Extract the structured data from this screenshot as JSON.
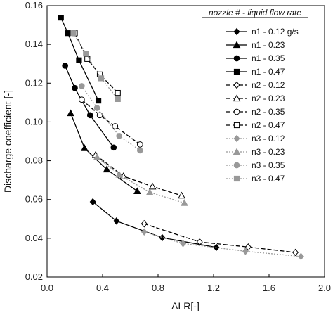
{
  "chart_data": {
    "type": "scatter",
    "title": "",
    "xlabel": "ALR[-]",
    "ylabel": "Discharge coefficient [-]",
    "xlim": [
      0.0,
      2.0
    ],
    "ylim": [
      0.02,
      0.16
    ],
    "x_ticks": [
      "0.0",
      "0.4",
      "0.8",
      "1.2",
      "1.6",
      "2.0"
    ],
    "y_ticks": [
      "0.02",
      "0.04",
      "0.06",
      "0.08",
      "0.10",
      "0.12",
      "0.14",
      "0.16"
    ],
    "legend_title": "nozzle # - liquid flow rate",
    "legend_position": "top-right",
    "grid": false,
    "series": [
      {
        "name": "n1 - 0.12 g/s",
        "marker": "diamond",
        "fill": "#000000",
        "line": "solid",
        "color": "#000000",
        "points": [
          [
            0.33,
            0.0588
          ],
          [
            0.5,
            0.0489
          ],
          [
            0.83,
            0.0403
          ],
          [
            1.22,
            0.0353
          ]
        ]
      },
      {
        "name": "n1 - 0.23",
        "marker": "triangle",
        "fill": "#000000",
        "line": "solid",
        "color": "#000000",
        "points": [
          [
            0.17,
            0.1045
          ],
          [
            0.27,
            0.0865
          ],
          [
            0.43,
            0.0755
          ],
          [
            0.65,
            0.0643
          ]
        ]
      },
      {
        "name": "n1 - 0.35",
        "marker": "circle",
        "fill": "#000000",
        "line": "solid",
        "color": "#000000",
        "points": [
          [
            0.13,
            0.129
          ],
          [
            0.2,
            0.1175
          ],
          [
            0.31,
            0.1035
          ],
          [
            0.48,
            0.0868
          ]
        ]
      },
      {
        "name": "n1 - 0.47",
        "marker": "square",
        "fill": "#000000",
        "line": "solid",
        "color": "#000000",
        "points": [
          [
            0.1,
            0.1538
          ],
          [
            0.15,
            0.1458
          ],
          [
            0.23,
            0.1318
          ],
          [
            0.37,
            0.111
          ]
        ]
      },
      {
        "name": "n2 - 0.12",
        "marker": "diamond",
        "fill": "#ffffff",
        "line": "dashed",
        "color": "#000000",
        "points": [
          [
            0.7,
            0.0475
          ],
          [
            1.1,
            0.0381
          ],
          [
            1.45,
            0.0355
          ],
          [
            1.79,
            0.0327
          ]
        ]
      },
      {
        "name": "n2 - 0.23",
        "marker": "triangle",
        "fill": "#ffffff",
        "line": "dashed",
        "color": "#000000",
        "points": [
          [
            0.35,
            0.083
          ],
          [
            0.55,
            0.072
          ],
          [
            0.76,
            0.0667
          ],
          [
            0.97,
            0.062
          ]
        ]
      },
      {
        "name": "n2 - 0.35",
        "marker": "circle",
        "fill": "#ffffff",
        "line": "dashed",
        "color": "#000000",
        "points": [
          [
            0.25,
            0.1115
          ],
          [
            0.38,
            0.1035
          ],
          [
            0.49,
            0.0978
          ],
          [
            0.67,
            0.0884
          ]
        ]
      },
      {
        "name": "n2 - 0.47",
        "marker": "square",
        "fill": "#ffffff",
        "line": "dashed",
        "color": "#000000",
        "points": [
          [
            0.2,
            0.1458
          ],
          [
            0.29,
            0.1325
          ],
          [
            0.38,
            0.1245
          ],
          [
            0.51,
            0.115
          ]
        ]
      },
      {
        "name": "n3 - 0.12",
        "marker": "diamond",
        "fill": "#999999",
        "line": "dotted",
        "color": "#999999",
        "points": [
          [
            0.7,
            0.0433
          ],
          [
            0.98,
            0.0373
          ],
          [
            1.43,
            0.0333
          ],
          [
            1.83,
            0.0306
          ]
        ]
      },
      {
        "name": "n3 - 0.23",
        "marker": "triangle",
        "fill": "#999999",
        "line": "dotted",
        "color": "#999999",
        "points": [
          [
            0.36,
            0.0818
          ],
          [
            0.52,
            0.0728
          ],
          [
            0.74,
            0.0637
          ],
          [
            0.99,
            0.0582
          ]
        ]
      },
      {
        "name": "n3 - 0.35",
        "marker": "circle",
        "fill": "#999999",
        "line": "dotted",
        "color": "#999999",
        "points": [
          [
            0.25,
            0.1185
          ],
          [
            0.36,
            0.1072
          ],
          [
            0.52,
            0.0928
          ],
          [
            0.67,
            0.0853
          ]
        ]
      },
      {
        "name": "n3 - 0.47",
        "marker": "square",
        "fill": "#999999",
        "line": "dotted",
        "color": "#999999",
        "points": [
          [
            0.19,
            0.1458
          ],
          [
            0.28,
            0.1353
          ],
          [
            0.39,
            0.1225
          ],
          [
            0.51,
            0.1118
          ]
        ]
      }
    ]
  }
}
